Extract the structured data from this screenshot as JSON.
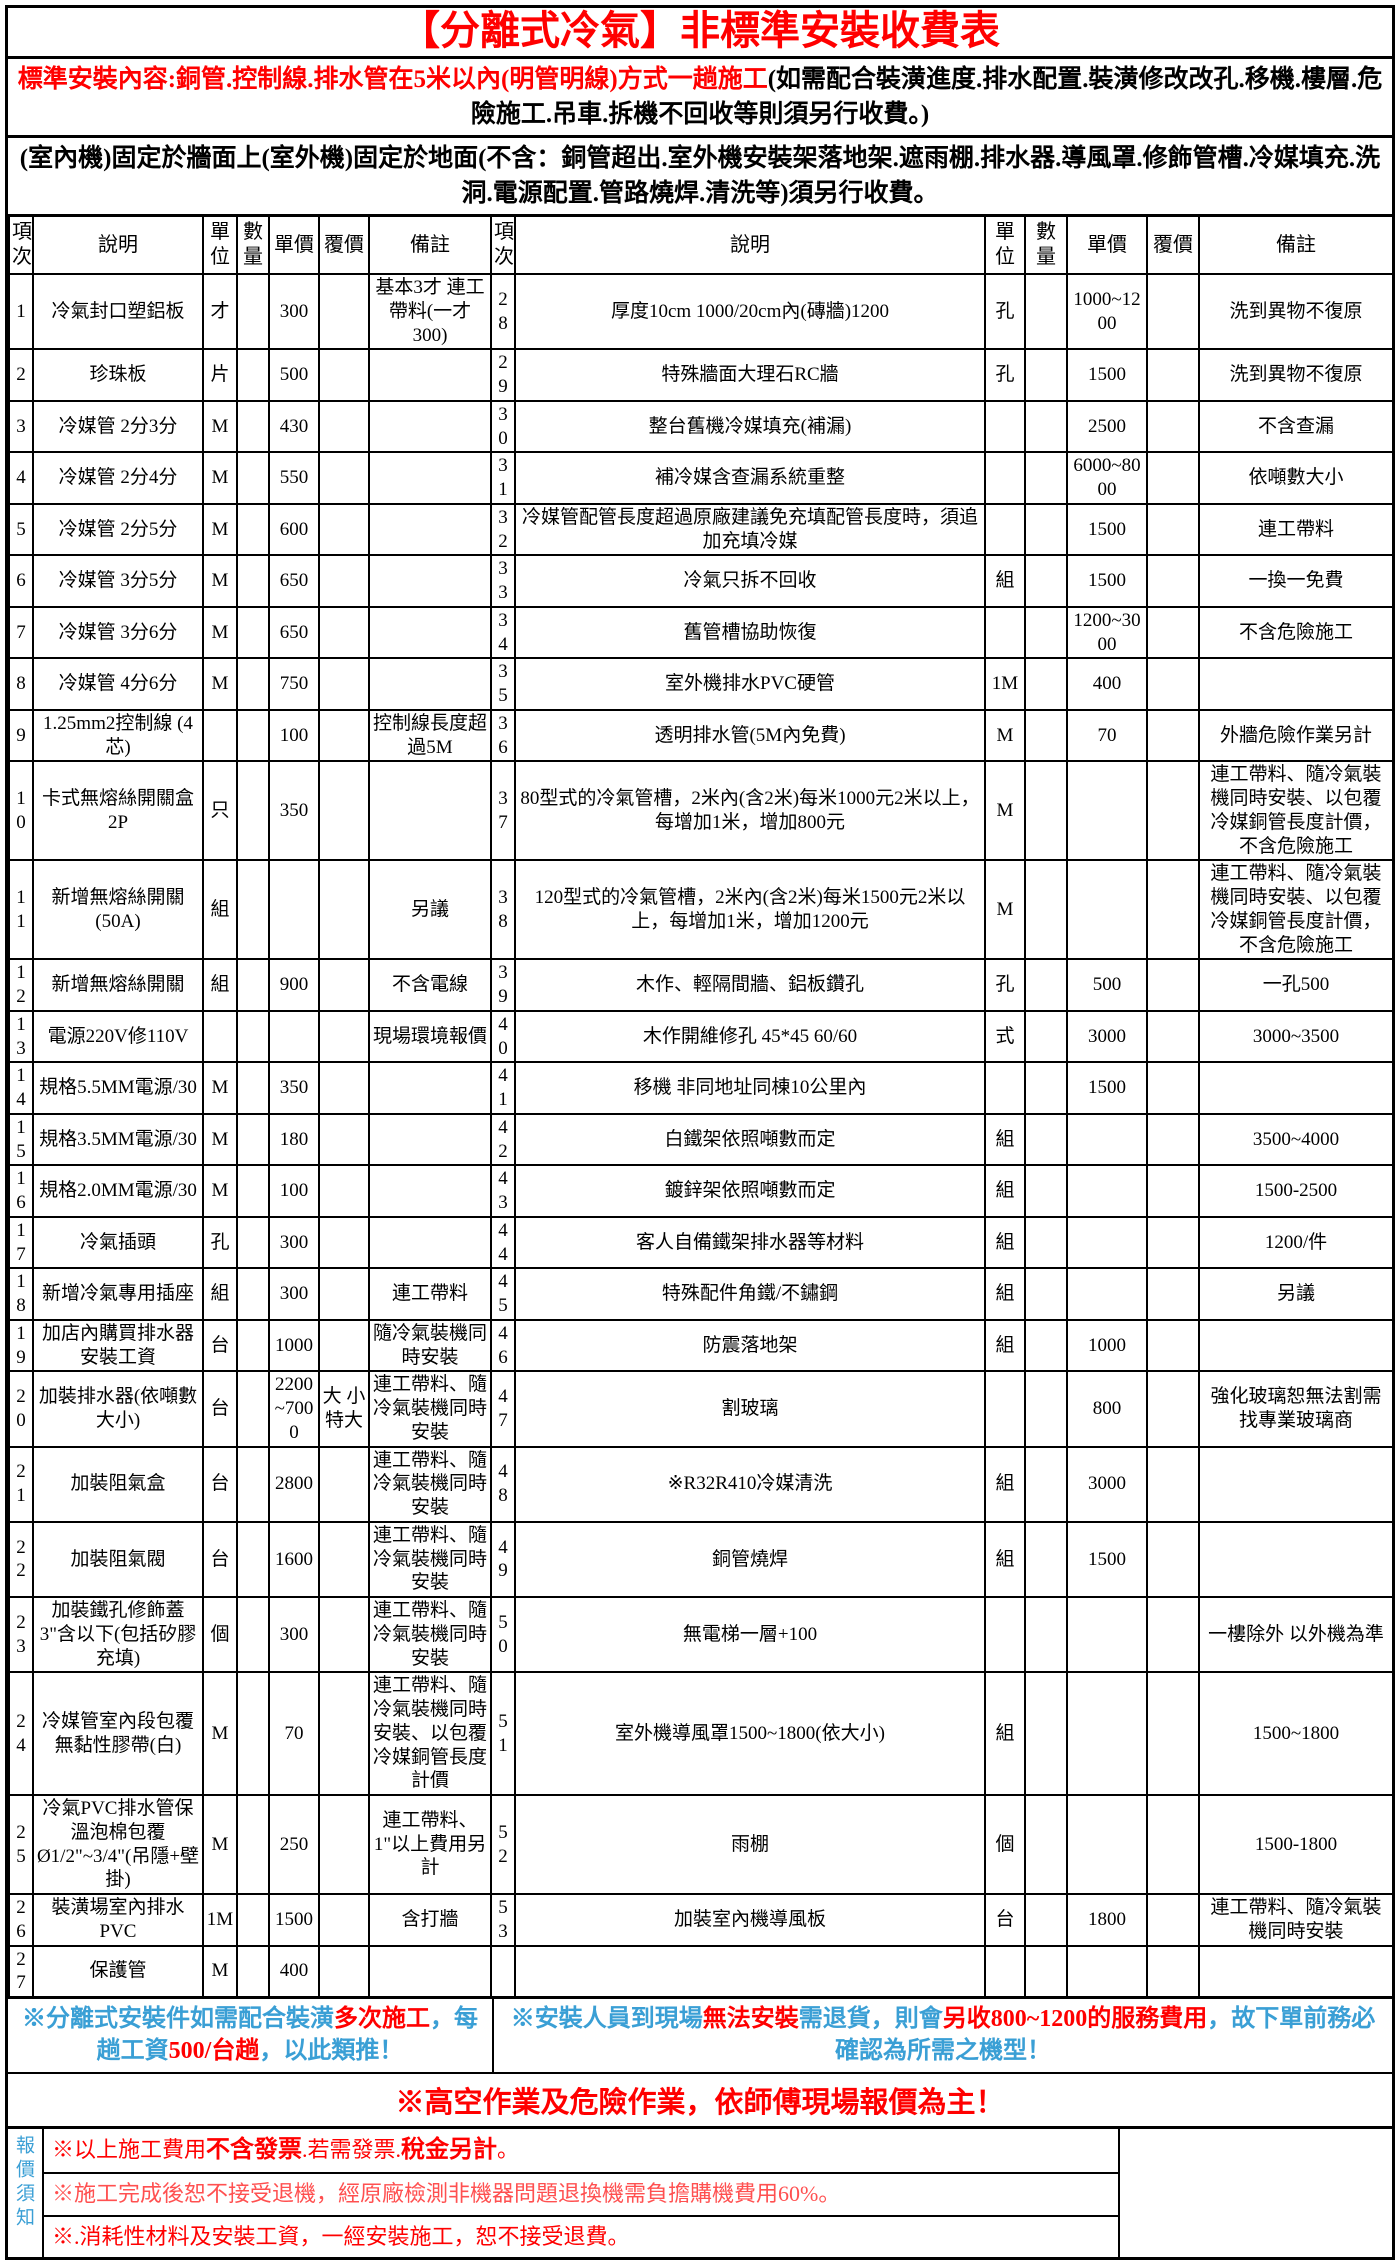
{
  "colors": {
    "red": "#ff0000",
    "blue": "#3a9fd5",
    "red_light": "#ff5050"
  },
  "header": {
    "title": "【分離式冷氣】非標準安裝收費表",
    "standard_note_red": "標準安裝內容:銅管.控制線.排水管在5米以內(明管明線)方式一趟施工",
    "standard_note_black": "(如需配合裝潢進度.排水配置.裝潢修改改孔.移機.樓層.危險施工.吊車.拆機不回收等則須另行收費。)",
    "mount_note": "(室內機)固定於牆面上(室外機)固定於地面(不含：銅管超出.室外機安裝架落地架.遮雨棚.排水器.導風罩.修飾管槽.冷媒填充.洗洞.電源配置.管路燒焊.清洗等)須另行收費。"
  },
  "table": {
    "headers": [
      "項次",
      "說明",
      "單位",
      "數量",
      "單價",
      "覆價",
      "備註"
    ],
    "left_rows": [
      [
        "1",
        "冷氣封口塑鋁板",
        "才",
        "",
        "300",
        "",
        "基本3才 連工帶料(一才300)"
      ],
      [
        "2",
        "珍珠板",
        "片",
        "",
        "500",
        "",
        ""
      ],
      [
        "3",
        "冷媒管 2分3分",
        "M",
        "",
        "430",
        "",
        ""
      ],
      [
        "4",
        "冷媒管 2分4分",
        "M",
        "",
        "550",
        "",
        ""
      ],
      [
        "5",
        "冷媒管 2分5分",
        "M",
        "",
        "600",
        "",
        ""
      ],
      [
        "6",
        "冷媒管 3分5分",
        "M",
        "",
        "650",
        "",
        ""
      ],
      [
        "7",
        "冷媒管 3分6分",
        "M",
        "",
        "650",
        "",
        ""
      ],
      [
        "8",
        "冷媒管 4分6分",
        "M",
        "",
        "750",
        "",
        ""
      ],
      [
        "9",
        "1.25mm2控制線 (4芯)",
        "",
        "",
        "100",
        "",
        "控制線長度超過5M"
      ],
      [
        "10",
        "卡式無熔絲開關盒 2P",
        "只",
        "",
        "350",
        "",
        ""
      ],
      [
        "11",
        "新增無熔絲開關 (50A)",
        "組",
        "",
        "",
        "",
        "另議"
      ],
      [
        "12",
        "新增無熔絲開關",
        "組",
        "",
        "900",
        "",
        "不含電線"
      ],
      [
        "13",
        "電源220V修110V",
        "",
        "",
        "",
        "",
        "現場環境報價"
      ],
      [
        "14",
        "規格5.5MM電源/30",
        "M",
        "",
        "350",
        "",
        ""
      ],
      [
        "15",
        "規格3.5MM電源/30",
        "M",
        "",
        "180",
        "",
        ""
      ],
      [
        "16",
        "規格2.0MM電源/30",
        "M",
        "",
        "100",
        "",
        ""
      ],
      [
        "17",
        "冷氣插頭",
        "孔",
        "",
        "300",
        "",
        ""
      ],
      [
        "18",
        "新增冷氣專用插座",
        "組",
        "",
        "300",
        "",
        "連工帶料"
      ],
      [
        "19",
        "加店內購買排水器安裝工資",
        "台",
        "",
        "1000",
        "",
        "隨冷氣裝機同時安裝"
      ],
      [
        "20",
        "加裝排水器(依噸數大小)",
        "台",
        "",
        "2200~7000",
        "大 小特大",
        "連工帶料、隨冷氣裝機同時安裝"
      ],
      [
        "21",
        "加裝阻氣盒",
        "台",
        "",
        "2800",
        "",
        "連工帶料、隨冷氣裝機同時安裝"
      ],
      [
        "22",
        "加裝阻氣閥",
        "台",
        "",
        "1600",
        "",
        "連工帶料、隨冷氣裝機同時安裝"
      ],
      [
        "23",
        "加裝鐵孔修飾蓋3\"含以下(包括矽膠充填)",
        "個",
        "",
        "300",
        "",
        "連工帶料、隨冷氣裝機同時安裝"
      ],
      [
        "24",
        "冷媒管室內段包覆無黏性膠帶(白)",
        "M",
        "",
        "70",
        "",
        "連工帶料、隨冷氣裝機同時安裝、以包覆冷媒銅管長度計價"
      ],
      [
        "25",
        "冷氣PVC排水管保溫泡棉包覆Ø1/2\"~3/4\"(吊隱+壁掛)",
        "M",
        "",
        "250",
        "",
        "連工帶料、1\"以上費用另計"
      ],
      [
        "26",
        "裝潢場室內排水PVC",
        "1M",
        "",
        "1500",
        "",
        "含打牆"
      ],
      [
        "27",
        "保護管",
        "M",
        "",
        "400",
        "",
        ""
      ]
    ],
    "right_rows": [
      [
        "28",
        "厚度10cm 1000/20cm內(磚牆)1200",
        "孔",
        "",
        "1000~1200",
        "",
        "洗到異物不復原"
      ],
      [
        "29",
        "特殊牆面大理石RC牆",
        "孔",
        "",
        "1500",
        "",
        "洗到異物不復原"
      ],
      [
        "30",
        "整台舊機冷媒填充(補漏)",
        "",
        "",
        "2500",
        "",
        "不含查漏"
      ],
      [
        "31",
        "補冷媒含查漏系統重整",
        "",
        "",
        "6000~8000",
        "",
        "依噸數大小"
      ],
      [
        "32",
        "冷媒管配管長度超過原廠建議免充填配管長度時，須追加充填冷媒",
        "",
        "",
        "1500",
        "",
        "連工帶料"
      ],
      [
        "33",
        "冷氣只拆不回收",
        "組",
        "",
        "1500",
        "",
        "一換一免費"
      ],
      [
        "34",
        "舊管槽協助恢復",
        "",
        "",
        "1200~3000",
        "",
        "不含危險施工"
      ],
      [
        "35",
        "室外機排水PVC硬管",
        "1M",
        "",
        "400",
        "",
        ""
      ],
      [
        "36",
        "透明排水管(5M內免費)",
        "M",
        "",
        "70",
        "",
        "外牆危險作業另計"
      ],
      [
        "37",
        "80型式的冷氣管槽，2米內(含2米)每米1000元2米以上，每增加1米，增加800元",
        "M",
        "",
        "",
        "",
        "連工帶料、隨冷氣裝機同時安裝、以包覆冷媒銅管長度計價，不含危險施工"
      ],
      [
        "38",
        "120型式的冷氣管槽，2米內(含2米)每米1500元2米以上，每增加1米，增加1200元",
        "M",
        "",
        "",
        "",
        "連工帶料、隨冷氣裝機同時安裝、以包覆冷媒銅管長度計價，不含危險施工"
      ],
      [
        "39",
        "木作、輕隔間牆、鋁板鑽孔",
        "孔",
        "",
        "500",
        "",
        "一孔500"
      ],
      [
        "40",
        "木作開維修孔 45*45  60/60",
        "式",
        "",
        "3000",
        "",
        "3000~3500"
      ],
      [
        "41",
        "移機 非同地址同棟10公里內",
        "",
        "",
        "1500",
        "",
        ""
      ],
      [
        "42",
        "白鐵架依照噸數而定",
        "組",
        "",
        "",
        "",
        "3500~4000"
      ],
      [
        "43",
        "鍍鋅架依照噸數而定",
        "組",
        "",
        "",
        "",
        "1500-2500"
      ],
      [
        "44",
        "客人自備鐵架排水器等材料",
        "組",
        "",
        "",
        "",
        "1200/件"
      ],
      [
        "45",
        "特殊配件角鐵/不鏽鋼",
        "組",
        "",
        "",
        "",
        "另議"
      ],
      [
        "46",
        "防震落地架",
        "組",
        "",
        "1000",
        "",
        ""
      ],
      [
        "47",
        "割玻璃",
        "",
        "",
        "800",
        "",
        "強化玻璃恕無法割需找專業玻璃商"
      ],
      [
        "48",
        "※R32R410冷媒清洗",
        "組",
        "",
        "3000",
        "",
        ""
      ],
      [
        "49",
        "銅管燒焊",
        "組",
        "",
        "1500",
        "",
        ""
      ],
      [
        "50",
        "無電梯一層+100",
        "",
        "",
        "",
        "",
        "一樓除外 以外機為準"
      ],
      [
        "51",
        "室外機導風罩1500~1800(依大小)",
        "組",
        "",
        "",
        "",
        "1500~1800"
      ],
      [
        "52",
        "雨棚",
        "個",
        "",
        "",
        "",
        "1500-1800"
      ],
      [
        "53",
        "加裝室內機導風板",
        "台",
        "",
        "1800",
        "",
        "連工帶料、隨冷氣裝機同時安裝"
      ],
      [
        "",
        "",
        "",
        "",
        "",
        "",
        ""
      ]
    ]
  },
  "footer": {
    "left_note": [
      {
        "t": "※分離式安裝件如需配合裝潢",
        "c": "blue"
      },
      {
        "t": "多次施工",
        "c": "red-bold"
      },
      {
        "t": "，每趟工資",
        "c": "blue"
      },
      {
        "t": "500/台趟",
        "c": "red-bold"
      },
      {
        "t": "，以此類推！",
        "c": "blue"
      }
    ],
    "right_note": [
      {
        "t": "※安裝人員到現場",
        "c": "blue"
      },
      {
        "t": "無法安裝",
        "c": "red-bold"
      },
      {
        "t": "需退貨，則會",
        "c": "blue"
      },
      {
        "t": "另收800~1200的服務費用",
        "c": "red-bold"
      },
      {
        "t": "，故下單前務必確認為所需之機型！",
        "c": "blue"
      }
    ],
    "danger_note": "※高空作業及危險作業，依師傅現場報價為主！",
    "sidebar_label": "報價須知",
    "bottom_notes": [
      [
        {
          "t": "※以上施工費用",
          "c": "red"
        },
        {
          "t": "不含發票",
          "c": "red-bold"
        },
        {
          "t": ".若需發票.",
          "c": "red"
        },
        {
          "t": "稅金另計",
          "c": "red-bold"
        },
        {
          "t": "。",
          "c": "red"
        }
      ],
      [
        {
          "t": "※施工完成後恕不接受退機，經原廠檢測非機器問題退換機需負擔購機費用60%。",
          "c": "red-light"
        }
      ],
      [
        {
          "t": "※.消耗性材料及安裝工資，一經安裝施工，恕不接受退費。",
          "c": "red"
        }
      ]
    ]
  }
}
